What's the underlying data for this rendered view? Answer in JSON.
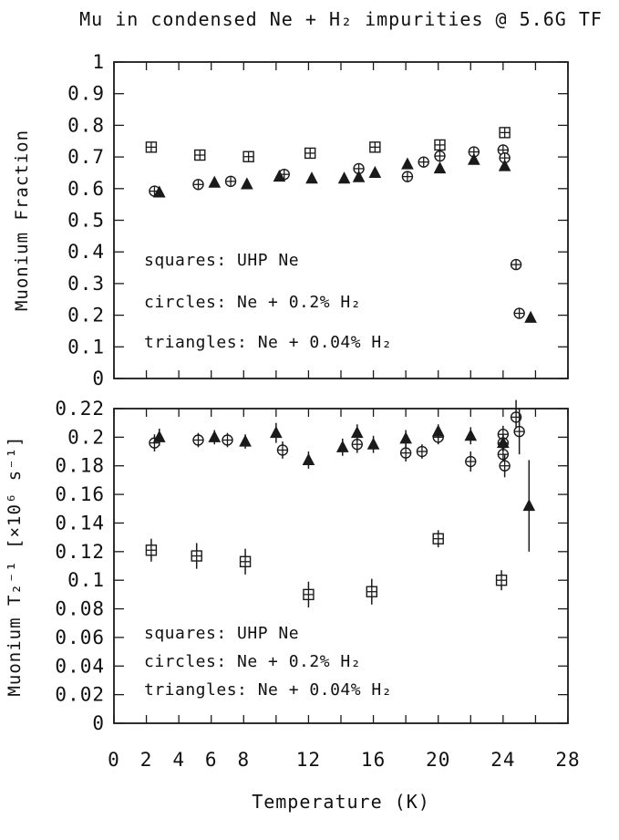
{
  "title": "Mu in condensed Ne + H₂ impurities @ 5.6G TF",
  "colors": {
    "ink": "#1a1a1a",
    "background": "#ffffff"
  },
  "chart_data": [
    {
      "type": "scatter",
      "panel": "top",
      "ylabel": "Muonium Fraction",
      "xlabel": "",
      "xlim": [
        0,
        28
      ],
      "ylim": [
        0,
        1
      ],
      "grid": false,
      "xticks": [
        0,
        2,
        4,
        6,
        8,
        10,
        12,
        14,
        16,
        18,
        20,
        22,
        24,
        26,
        28
      ],
      "yticks": [
        1,
        0.9,
        0.8,
        0.7,
        0.6,
        0.5,
        0.4,
        0.3,
        0.2,
        0.1,
        0
      ],
      "ytick_labels": [
        "1",
        "0.9",
        "0.8",
        "0.7",
        "0.6",
        "0.5",
        "0.4",
        "0.3",
        "0.2",
        "0.1",
        "0"
      ],
      "legend": [
        "squares: UHP Ne",
        "circles: Ne + 0.2% H₂",
        "triangles: Ne + 0.04% H₂"
      ],
      "series": [
        {
          "name": "squares: UHP Ne",
          "marker": "square",
          "points": [
            [
              2.3,
              0.731,
              0.007
            ],
            [
              5.3,
              0.706,
              0.007
            ],
            [
              8.3,
              0.701,
              0.007
            ],
            [
              12.1,
              0.712,
              0.007
            ],
            [
              16.1,
              0.731,
              0.007
            ],
            [
              20.1,
              0.738,
              0.007
            ],
            [
              24.1,
              0.777,
              0.009
            ]
          ]
        },
        {
          "name": "circles: Ne + 0.2% H₂",
          "marker": "circle",
          "points": [
            [
              2.5,
              0.592,
              0.008
            ],
            [
              5.2,
              0.613,
              0.008
            ],
            [
              7.2,
              0.623,
              0.008
            ],
            [
              10.5,
              0.645,
              0.008
            ],
            [
              15.1,
              0.663,
              0.008
            ],
            [
              18.1,
              0.638,
              0.008
            ],
            [
              19.1,
              0.684,
              0.008
            ],
            [
              20.1,
              0.703,
              0.008
            ],
            [
              22.2,
              0.716,
              0.013
            ],
            [
              24.0,
              0.722,
              0.01
            ],
            [
              24.1,
              0.697,
              0.01
            ],
            [
              24.8,
              0.36,
              0.01
            ],
            [
              25.0,
              0.206,
              0.01
            ]
          ]
        },
        {
          "name": "triangles: Ne + 0.04% H₂",
          "marker": "triangle",
          "points": [
            [
              2.8,
              0.588,
              0.008
            ],
            [
              6.2,
              0.619,
              0.008
            ],
            [
              8.2,
              0.614,
              0.008
            ],
            [
              10.2,
              0.638,
              0.008
            ],
            [
              12.2,
              0.632,
              0.008
            ],
            [
              14.2,
              0.632,
              0.008
            ],
            [
              15.1,
              0.636,
              0.008
            ],
            [
              16.1,
              0.65,
              0.008
            ],
            [
              18.1,
              0.677,
              0.008
            ],
            [
              20.1,
              0.664,
              0.008
            ],
            [
              22.2,
              0.691,
              0.01
            ],
            [
              24.1,
              0.671,
              0.01
            ],
            [
              25.7,
              0.192,
              0.012
            ]
          ]
        }
      ]
    },
    {
      "type": "scatter",
      "panel": "bottom",
      "ylabel": "Muonium T₂⁻¹ [×10⁶ s⁻¹]",
      "xlabel": "Temperature (K)",
      "xlim": [
        0,
        28
      ],
      "ylim": [
        0,
        0.22
      ],
      "grid": false,
      "xticks": [
        0,
        2,
        4,
        6,
        8,
        10,
        12,
        14,
        16,
        18,
        20,
        22,
        24,
        26,
        28
      ],
      "xtick_label_values": [
        0,
        2,
        4,
        6,
        8,
        12,
        16,
        20,
        24,
        28
      ],
      "xtick_label_texts": [
        "0",
        "2",
        "4",
        "6",
        "8",
        "12",
        "16",
        "20",
        "24",
        "28"
      ],
      "yticks": [
        0.22,
        0.2,
        0.18,
        0.16,
        0.14,
        0.12,
        0.1,
        0.08,
        0.06,
        0.04,
        0.02,
        0
      ],
      "ytick_labels": [
        "0.22",
        "0.2",
        "0.18",
        "0.16",
        "0.14",
        "0.12",
        "0.1",
        "0.08",
        "0.06",
        "0.04",
        "0.02",
        "0"
      ],
      "legend": [
        "squares: UHP Ne",
        "circles: Ne + 0.2% H₂",
        "triangles: Ne + 0.04% H₂"
      ],
      "series": [
        {
          "name": "squares: UHP Ne",
          "marker": "square",
          "points": [
            [
              2.3,
              0.121,
              0.008
            ],
            [
              5.1,
              0.117,
              0.009
            ],
            [
              8.1,
              0.113,
              0.009
            ],
            [
              12.0,
              0.09,
              0.009
            ],
            [
              15.9,
              0.092,
              0.009
            ],
            [
              20.0,
              0.129,
              0.006
            ],
            [
              23.9,
              0.1,
              0.007
            ]
          ]
        },
        {
          "name": "circles: Ne + 0.2% H₂",
          "marker": "circle",
          "points": [
            [
              2.5,
              0.196,
              0.006
            ],
            [
              5.2,
              0.198,
              0.005
            ],
            [
              7.0,
              0.198,
              0.005
            ],
            [
              10.4,
              0.191,
              0.006
            ],
            [
              15.0,
              0.195,
              0.006
            ],
            [
              18.0,
              0.189,
              0.006
            ],
            [
              19.0,
              0.19,
              0.005
            ],
            [
              20.0,
              0.2,
              0.005
            ],
            [
              22.0,
              0.183,
              0.007
            ],
            [
              24.0,
              0.202,
              0.006
            ],
            [
              24.0,
              0.196,
              0.006
            ],
            [
              24.0,
              0.188,
              0.007
            ],
            [
              24.1,
              0.18,
              0.008
            ],
            [
              24.8,
              0.214,
              0.012
            ],
            [
              25.0,
              0.204,
              0.016
            ]
          ]
        },
        {
          "name": "triangles: Ne + 0.04% H₂",
          "marker": "triangle",
          "points": [
            [
              2.8,
              0.2,
              0.006
            ],
            [
              6.2,
              0.2,
              0.005
            ],
            [
              8.1,
              0.197,
              0.005
            ],
            [
              10.0,
              0.203,
              0.007
            ],
            [
              12.0,
              0.184,
              0.006
            ],
            [
              14.1,
              0.193,
              0.006
            ],
            [
              15.0,
              0.203,
              0.006
            ],
            [
              16.0,
              0.195,
              0.006
            ],
            [
              18.0,
              0.199,
              0.006
            ],
            [
              20.0,
              0.204,
              0.005
            ],
            [
              22.0,
              0.201,
              0.006
            ],
            [
              24.0,
              0.196,
              0.006
            ],
            [
              25.6,
              0.152,
              0.032
            ]
          ]
        }
      ]
    }
  ]
}
